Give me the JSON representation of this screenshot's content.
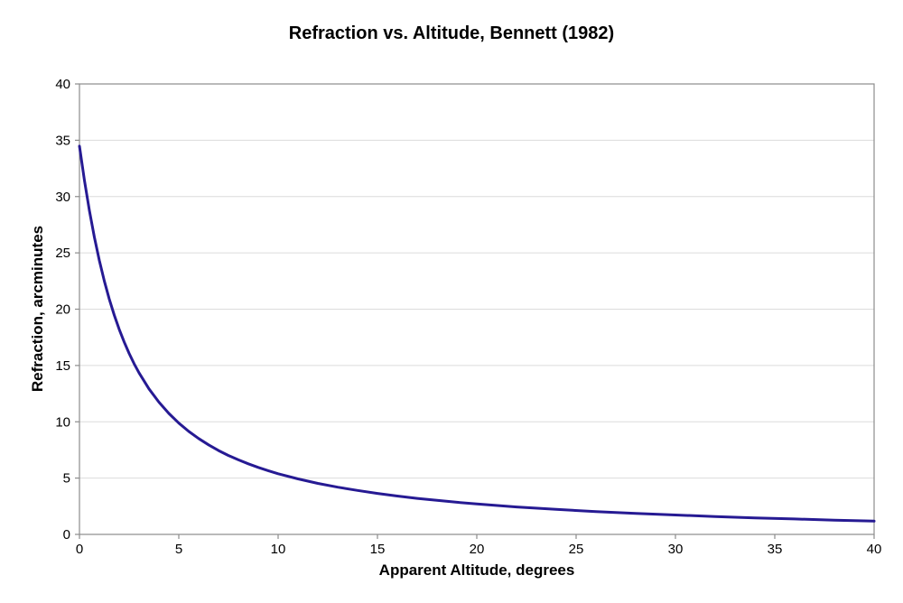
{
  "chart_data": {
    "type": "line",
    "title": "Refraction vs. Altitude, Bennett (1982)",
    "xlabel": "Apparent Altitude, degrees",
    "ylabel": "Refraction, arcminutes",
    "xlim": [
      0,
      40
    ],
    "ylim": [
      0,
      40
    ],
    "x_ticks": [
      0,
      5,
      10,
      15,
      20,
      25,
      30,
      35,
      40
    ],
    "y_ticks": [
      0,
      5,
      10,
      15,
      20,
      25,
      30,
      35,
      40
    ],
    "grid": "horizontal-only",
    "legend": "none",
    "series": [
      {
        "name": "Bennett (1982)",
        "color": "#261A93",
        "x": [
          0,
          0.25,
          0.5,
          0.75,
          1,
          1.25,
          1.5,
          1.75,
          2,
          2.25,
          2.5,
          2.75,
          3,
          3.5,
          4,
          4.5,
          5,
          5.5,
          6,
          6.5,
          7,
          7.5,
          8,
          8.5,
          9,
          9.5,
          10,
          11,
          12,
          13,
          14,
          15,
          16,
          17,
          18,
          19,
          20,
          22,
          24,
          26,
          28,
          30,
          32,
          34,
          36,
          38,
          40
        ],
        "y": [
          34.48,
          31.44,
          28.76,
          26.4,
          24.33,
          22.51,
          20.9,
          19.48,
          18.21,
          17.09,
          16.07,
          15.16,
          14.34,
          12.92,
          11.74,
          10.74,
          9.88,
          9.15,
          8.51,
          7.95,
          7.45,
          7.01,
          6.62,
          6.27,
          5.95,
          5.66,
          5.39,
          4.93,
          4.53,
          4.19,
          3.9,
          3.64,
          3.41,
          3.2,
          3.02,
          2.85,
          2.7,
          2.44,
          2.22,
          2.03,
          1.86,
          1.72,
          1.59,
          1.47,
          1.37,
          1.27,
          1.18
        ]
      }
    ]
  },
  "colors": {
    "background": "#FFFFFF",
    "text": "#000000",
    "axis": "#8C8C8C",
    "gridline": "#DCDCDC",
    "curve": "#261A93"
  }
}
